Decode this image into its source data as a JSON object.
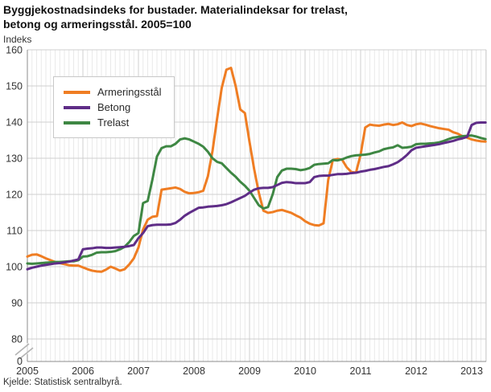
{
  "header": {
    "title_line1": "Byggjekostnadsindeks for bustader. Materialindeksar for trelast,",
    "title_line2": "betong og armeringsstål. 2005=100",
    "y_axis_unit": "Indeks"
  },
  "source": "Kjelde: Statistisk sentralbyrå.",
  "colors": {
    "armeringsstal": "#ef7d23",
    "betong": "#5f2d87",
    "trelast": "#3e8743",
    "axis": "#8c8c8c",
    "grid_major": "#cfcfcf",
    "grid_minor": "#e9e9e9",
    "tick_text": "#333333"
  },
  "legend": [
    {
      "label": "Armeringsstål",
      "color_key": "armeringsstal"
    },
    {
      "label": "Betong",
      "color_key": "betong"
    },
    {
      "label": "Trelast",
      "color_key": "trelast"
    }
  ],
  "chart_data": {
    "type": "line",
    "title": "Byggjekostnadsindeks for bustader. Materialindeksar for trelast, betong og armeringsstål. 2005=100",
    "ylabel": "Indeks",
    "ylim": [
      80,
      160
    ],
    "y_ticks": [
      "160",
      "150",
      "140",
      "130",
      "120",
      "110",
      "100",
      "90",
      "80"
    ],
    "y_axis_break": true,
    "zero_label": "0",
    "x_tick_labels": [
      "2005",
      "2006",
      "2007",
      "2008",
      "2009",
      "2010",
      "2011",
      "2012",
      "2013"
    ],
    "x_start_year": 2005,
    "points_per_year": 12,
    "legend_position": "top-left",
    "grid": true,
    "series": [
      {
        "name": "Armeringsstål",
        "color_key": "armeringsstal",
        "values": [
          102.8,
          103.3,
          103.4,
          102.9,
          102.3,
          101.8,
          101.3,
          101.0,
          100.7,
          100.4,
          100.3,
          100.3,
          99.8,
          99.3,
          98.9,
          98.7,
          98.6,
          99.2,
          100.0,
          99.5,
          98.9,
          99.3,
          100.6,
          102.3,
          105.3,
          110.3,
          113.0,
          113.8,
          114.0,
          121.3,
          121.5,
          121.7,
          121.9,
          121.5,
          120.7,
          120.3,
          120.4,
          120.6,
          121.0,
          125.0,
          132.0,
          141.0,
          149.5,
          154.5,
          155.0,
          150.0,
          143.5,
          142.5,
          134.5,
          127.0,
          120.5,
          115.5,
          114.9,
          115.1,
          115.5,
          115.7,
          115.3,
          114.9,
          114.2,
          113.6,
          112.6,
          111.9,
          111.5,
          111.4,
          112.0,
          124.0,
          129.5,
          129.8,
          129.6,
          127.5,
          126.2,
          126.0,
          131.0,
          138.5,
          139.3,
          139.1,
          139.0,
          139.3,
          139.5,
          139.2,
          139.4,
          139.9,
          139.2,
          138.9,
          139.4,
          139.6,
          139.3,
          138.9,
          138.6,
          138.3,
          138.1,
          137.9,
          137.2,
          136.8,
          136.1,
          135.7,
          135.2,
          134.9,
          134.7,
          134.6
        ]
      },
      {
        "name": "Betong",
        "color_key": "betong",
        "values": [
          99.3,
          99.7,
          100.0,
          100.3,
          100.5,
          100.7,
          100.9,
          101.0,
          101.2,
          101.4,
          101.7,
          102.0,
          104.8,
          105.0,
          105.1,
          105.3,
          105.3,
          105.2,
          105.2,
          105.3,
          105.4,
          105.5,
          105.7,
          106.0,
          107.9,
          109.3,
          111.2,
          111.5,
          111.6,
          111.6,
          111.6,
          111.7,
          112.1,
          113.0,
          114.1,
          114.9,
          115.6,
          116.3,
          116.4,
          116.6,
          116.7,
          116.8,
          117.0,
          117.3,
          117.8,
          118.4,
          119.0,
          119.6,
          120.5,
          121.3,
          121.7,
          121.8,
          121.8,
          122.0,
          122.6,
          123.2,
          123.4,
          123.3,
          123.1,
          123.1,
          123.1,
          123.4,
          124.8,
          125.1,
          125.2,
          125.2,
          125.4,
          125.6,
          125.6,
          125.7,
          125.9,
          126.0,
          126.3,
          126.5,
          126.8,
          127.0,
          127.3,
          127.6,
          127.8,
          128.3,
          128.9,
          129.8,
          130.9,
          132.2,
          132.9,
          133.1,
          133.3,
          133.5,
          133.7,
          133.9,
          134.2,
          134.5,
          134.8,
          135.2,
          135.5,
          135.9,
          139.2,
          139.8,
          139.9,
          139.9
        ]
      },
      {
        "name": "Trelast",
        "color_key": "trelast",
        "values": [
          100.9,
          100.8,
          100.9,
          101.0,
          101.1,
          101.2,
          101.3,
          101.3,
          101.4,
          101.5,
          101.5,
          101.8,
          102.8,
          102.9,
          103.3,
          103.9,
          104.0,
          104.0,
          104.1,
          104.3,
          104.8,
          105.5,
          106.8,
          108.5,
          109.3,
          117.6,
          118.2,
          124.0,
          130.5,
          132.8,
          133.3,
          133.3,
          134.0,
          135.2,
          135.5,
          135.2,
          134.6,
          134.0,
          133.2,
          131.8,
          130.0,
          129.0,
          128.6,
          127.3,
          126.0,
          124.9,
          123.5,
          122.4,
          121.0,
          119.0,
          117.0,
          116.1,
          116.5,
          120.0,
          124.8,
          126.6,
          127.1,
          127.1,
          127.0,
          126.7,
          126.9,
          127.3,
          128.2,
          128.4,
          128.5,
          128.6,
          129.5,
          129.4,
          129.7,
          130.2,
          130.6,
          130.8,
          130.9,
          131.0,
          131.2,
          131.6,
          131.9,
          132.5,
          132.8,
          133.0,
          133.6,
          132.9,
          133.0,
          133.2,
          133.9,
          134.0,
          134.0,
          134.1,
          134.2,
          134.4,
          134.8,
          135.3,
          135.7,
          135.9,
          136.1,
          136.2,
          136.3,
          136.0,
          135.6,
          135.3
        ]
      }
    ]
  }
}
